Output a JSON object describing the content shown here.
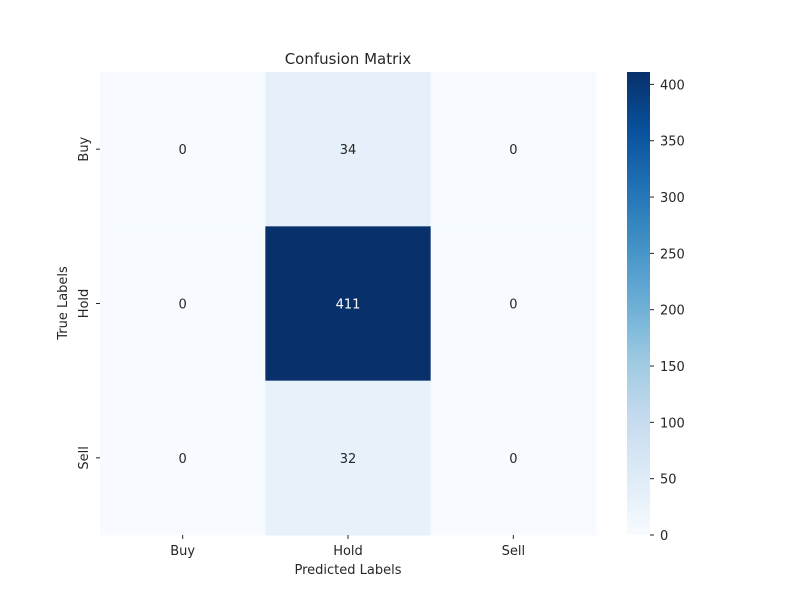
{
  "chart_data": {
    "type": "heatmap",
    "title": "Confusion Matrix",
    "xlabel": "Predicted Labels",
    "ylabel": "True Labels",
    "x_categories": [
      "Buy",
      "Hold",
      "Sell"
    ],
    "y_categories": [
      "Buy",
      "Hold",
      "Sell"
    ],
    "values": [
      [
        0,
        34,
        0
      ],
      [
        0,
        411,
        0
      ],
      [
        0,
        32,
        0
      ]
    ],
    "colormap": "Blues",
    "colorbar": {
      "range": [
        0,
        411
      ],
      "ticks": [
        0,
        50,
        100,
        150,
        200,
        250,
        300,
        350,
        400
      ]
    },
    "colors": {
      "low": "#f7fbff",
      "high": "#08306b",
      "text_dark": "#262626",
      "text_light": "#ffffff"
    }
  }
}
